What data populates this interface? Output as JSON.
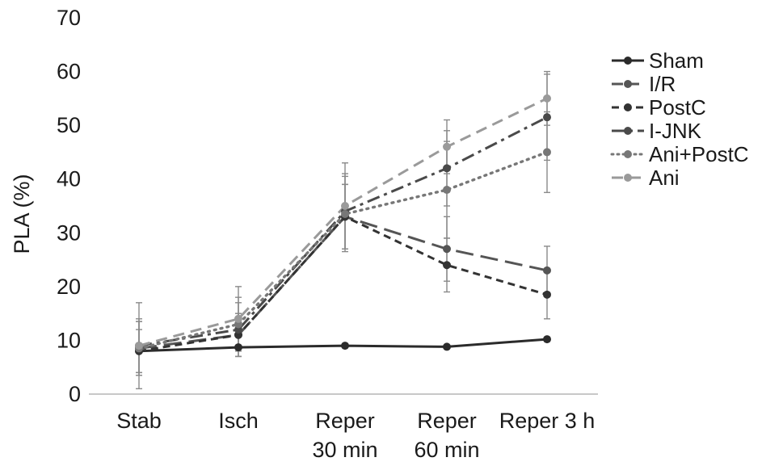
{
  "chart_data": {
    "type": "line",
    "ylabel": "PLA (%)",
    "xlabel": "",
    "ylim": [
      0,
      70
    ],
    "yticks": [
      0,
      10,
      20,
      30,
      40,
      50,
      60,
      70
    ],
    "categories": [
      [
        "Stab"
      ],
      [
        "Isch"
      ],
      [
        "Reper",
        "30 min"
      ],
      [
        "Reper",
        "60 min"
      ],
      [
        "Reper 3 h"
      ]
    ],
    "grid": false,
    "legend_position": "top-right",
    "series": [
      {
        "name": "Sham",
        "color": "#2b2b2b",
        "dash": "solid",
        "values": [
          8,
          8.7,
          9,
          8.8,
          10.2
        ],
        "errors": [
          0,
          0,
          0,
          0,
          0
        ]
      },
      {
        "name": "I/R",
        "color": "#555555",
        "dash": "longdash",
        "values": [
          8.5,
          11,
          33,
          27,
          23
        ],
        "errors": [
          5,
          4,
          6,
          6,
          4.5
        ]
      },
      {
        "name": "PostC",
        "color": "#333333",
        "dash": "shortdash",
        "values": [
          8,
          11,
          33,
          24,
          18.5
        ],
        "errors": [
          4,
          4,
          6,
          5,
          4.5
        ]
      },
      {
        "name": "I-JNK",
        "color": "#4a4a4a",
        "dash": "dashdot",
        "values": [
          9,
          12,
          34,
          42,
          51.5
        ],
        "errors": [
          5,
          5,
          7,
          7,
          8
        ]
      },
      {
        "name": "Ani+PostC",
        "color": "#777777",
        "dash": "dotted",
        "values": [
          8.5,
          13,
          33.5,
          38,
          45
        ],
        "errors": [
          5,
          5,
          7,
          9,
          7.5
        ]
      },
      {
        "name": "Ani",
        "color": "#9a9a9a",
        "dash": "dash",
        "values": [
          9,
          14,
          35,
          46,
          55
        ],
        "errors": [
          8,
          6,
          8,
          5,
          5
        ]
      }
    ]
  }
}
